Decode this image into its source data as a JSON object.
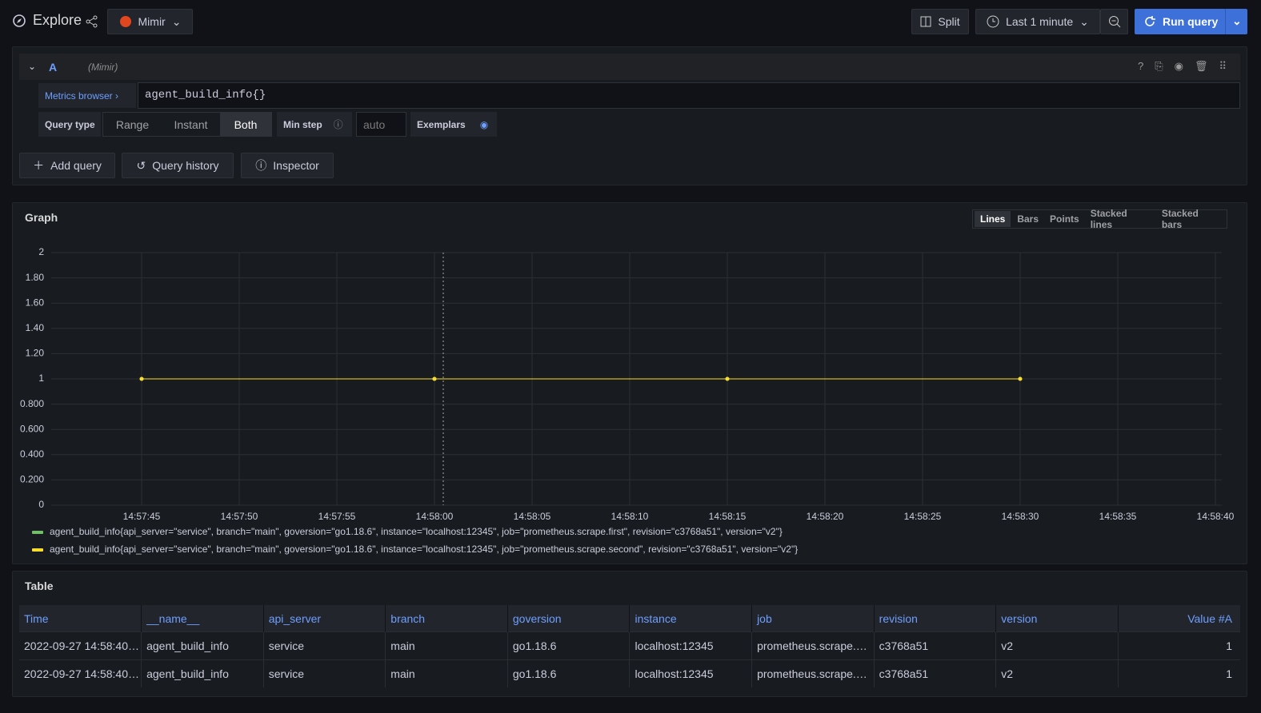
{
  "header": {
    "title": "Explore",
    "datasource": "Mimir",
    "split": "Split",
    "time_range": "Last 1 minute",
    "run_query": "Run query"
  },
  "query": {
    "ref": "A",
    "datasource": "(Mimir)",
    "metrics_browser": "Metrics browser",
    "expression": "agent_build_info{}",
    "query_type_label": "Query type",
    "query_types": [
      "Range",
      "Instant",
      "Both"
    ],
    "min_step_label": "Min step",
    "min_step_placeholder": "auto",
    "exemplars_label": "Exemplars"
  },
  "actions": [
    "Add query",
    "Query history",
    "Inspector"
  ],
  "chart_data": {
    "type": "line",
    "title": "Graph",
    "view_modes": [
      "Lines",
      "Bars",
      "Points",
      "Stacked lines",
      "Stacked bars"
    ],
    "x": [
      "14:57:45",
      "14:58:00",
      "14:58:15",
      "14:58:30"
    ],
    "xlim": [
      "14:57:40",
      "14:58:40"
    ],
    "xticks": [
      "14:57:45",
      "14:57:50",
      "14:57:55",
      "14:58:00",
      "14:58:05",
      "14:58:10",
      "14:58:15",
      "14:58:20",
      "14:58:25",
      "14:58:30",
      "14:58:35",
      "14:58:40"
    ],
    "ylim": [
      0,
      2
    ],
    "yticks": [
      0,
      {
        "value": 0.2,
        "label": "0.200"
      },
      {
        "value": 0.4,
        "label": "0.400"
      },
      {
        "value": 0.6,
        "label": "0.600"
      },
      {
        "value": 0.8,
        "label": "0.800"
      },
      1,
      {
        "value": 1.2,
        "label": "1.20"
      },
      {
        "value": 1.4,
        "label": "1.40"
      },
      {
        "value": 1.6,
        "label": "1.60"
      },
      {
        "value": 1.8,
        "label": "1.80"
      },
      2
    ],
    "grid": true,
    "series": [
      {
        "name": "agent_build_info{api_server=\"service\", branch=\"main\", goversion=\"go1.18.6\", instance=\"localhost:12345\", job=\"prometheus.scrape.first\", revision=\"c3768a51\", version=\"v2\"}",
        "color": "#73bf69",
        "values": [
          1,
          1,
          1,
          1
        ]
      },
      {
        "name": "agent_build_info{api_server=\"service\", branch=\"main\", goversion=\"go1.18.6\", instance=\"localhost:12345\", job=\"prometheus.scrape.second\", revision=\"c3768a51\", version=\"v2\"}",
        "color": "#fade2a",
        "values": [
          1,
          1,
          1,
          1
        ]
      }
    ]
  },
  "table": {
    "title": "Table",
    "columns": [
      "Time",
      "__name__",
      "api_server",
      "branch",
      "goversion",
      "instance",
      "job",
      "revision",
      "version",
      "Value #A"
    ],
    "rows": [
      [
        "2022-09-27 14:58:40…",
        "agent_build_info",
        "service",
        "main",
        "go1.18.6",
        "localhost:12345",
        "prometheus.scrape.…",
        "c3768a51",
        "v2",
        "1"
      ],
      [
        "2022-09-27 14:58:40…",
        "agent_build_info",
        "service",
        "main",
        "go1.18.6",
        "localhost:12345",
        "prometheus.scrape.…",
        "c3768a51",
        "v2",
        "1"
      ]
    ]
  }
}
